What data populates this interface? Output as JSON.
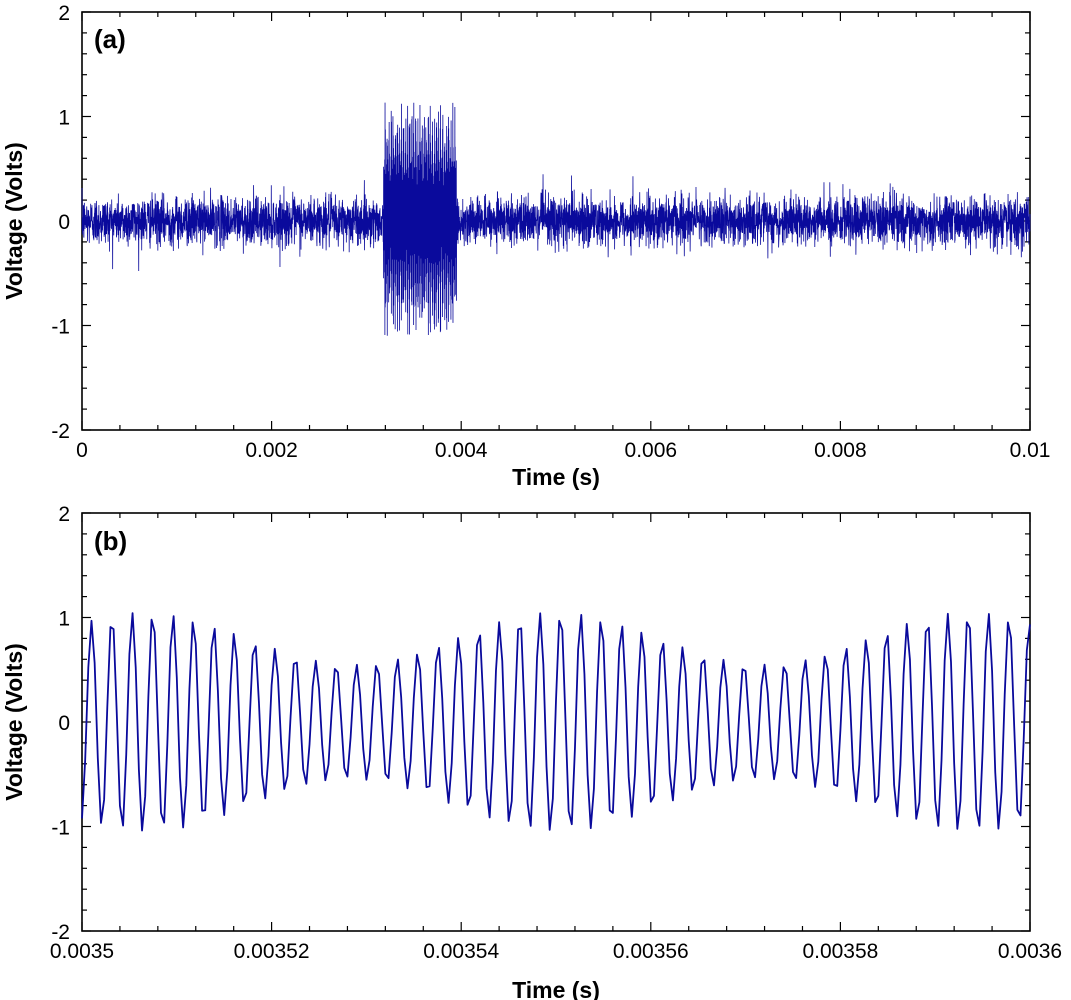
{
  "chart_data": [
    {
      "type": "line",
      "panel_label": "(a)",
      "xlabel": "Time (s)",
      "ylabel": "Voltage (Volts)",
      "xlim": [
        0,
        0.01
      ],
      "ylim": [
        -2,
        2
      ],
      "x_ticks": [
        0,
        0.002,
        0.004,
        0.006,
        0.008,
        0.01
      ],
      "x_tick_labels": [
        "0",
        "0.002",
        "0.004",
        "0.006",
        "0.008",
        "0.01"
      ],
      "y_ticks": [
        -2,
        -1,
        0,
        1,
        2
      ],
      "y_tick_labels": [
        "-2",
        "-1",
        "0",
        "1",
        "2"
      ],
      "grid": false,
      "line_color": "#0a0a9c",
      "series": [
        {
          "x_range": [
            0,
            0.01
          ],
          "samples": 6000,
          "envelope": [
            {
              "x_start": 0,
              "x_end": 0.00318,
              "amplitude": 0.3
            },
            {
              "x_start": 0.00318,
              "x_end": 0.00395,
              "amplitude": 1.15
            },
            {
              "x_start": 0.00395,
              "x_end": 0.01,
              "amplitude": 0.3
            }
          ]
        }
      ]
    },
    {
      "type": "line",
      "panel_label": "(b)",
      "xlabel": "Time (s)",
      "ylabel": "Voltage (Volts)",
      "xlim": [
        0.0035,
        0.0036
      ],
      "ylim": [
        -2,
        2
      ],
      "x_ticks": [
        0.0035,
        0.00352,
        0.00354,
        0.00356,
        0.00358,
        0.0036
      ],
      "x_tick_labels": [
        "0.0035",
        "0.00352",
        "0.00354",
        "0.00356",
        "0.00358",
        "0.0036"
      ],
      "y_ticks": [
        -2,
        -1,
        0,
        1,
        2
      ],
      "y_tick_labels": [
        "-2",
        "-1",
        "0",
        "1",
        "2"
      ],
      "grid": false,
      "line_color": "#0a0a9c",
      "series": [
        {
          "x_range": [
            0.0035,
            0.0036
          ],
          "cycles": 46.5,
          "amplitude_range": [
            0.55,
            1.05
          ]
        }
      ]
    }
  ]
}
